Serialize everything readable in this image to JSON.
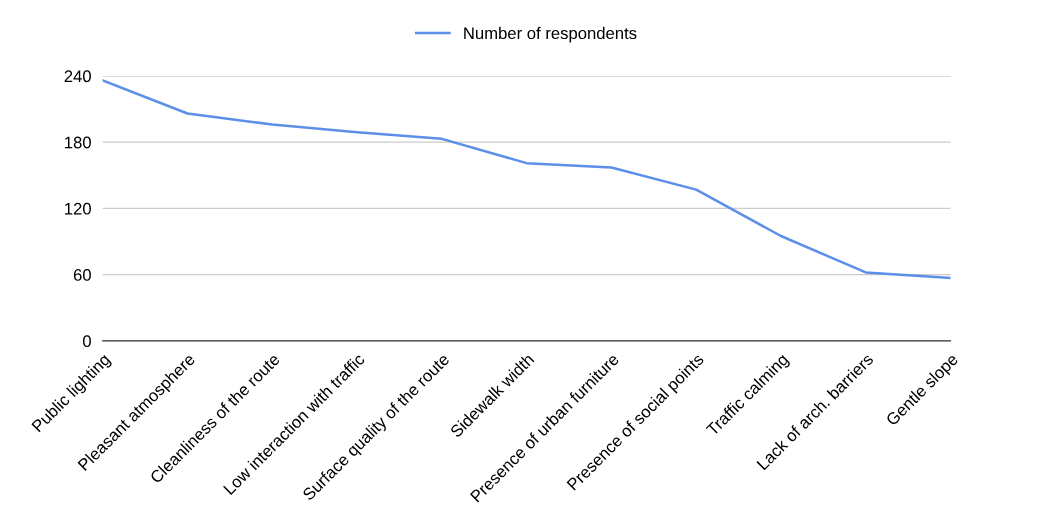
{
  "chart_data": {
    "type": "line",
    "categories": [
      "Public lighting",
      "Pleasant atmosphere",
      "Cleanliness of the route",
      "Low interaction with traffic",
      "Surface quality of the route",
      "Sidewalk width",
      "Presence of urban furniture",
      "Presence of social points",
      "Traffic calming",
      "Lack of arch. barriers",
      "Gentle slope"
    ],
    "series": [
      {
        "name": "Number of respondents",
        "color": "#5b8fe8",
        "values": [
          236,
          206,
          196,
          189,
          183,
          161,
          157,
          137,
          95,
          62,
          57
        ]
      }
    ],
    "ylim": [
      0,
      240
    ],
    "yticks": [
      0,
      60,
      120,
      180,
      240
    ],
    "grid": "y",
    "legend": "top",
    "marker": "none",
    "line_style": "solid"
  }
}
